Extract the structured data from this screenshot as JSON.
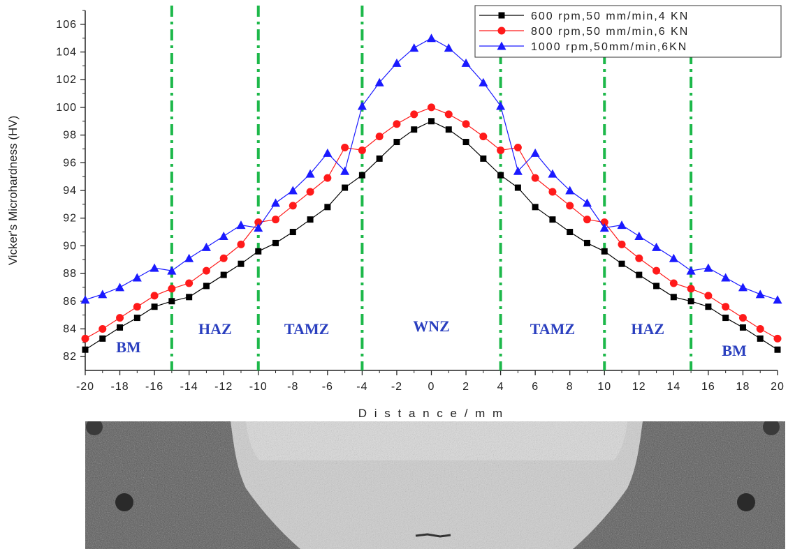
{
  "chart_data": {
    "type": "line",
    "xlabel": "D i s t a n c e / m m",
    "ylabel": "Vicker's Microhardness (HV)",
    "xlim": [
      -20,
      20
    ],
    "ylim": [
      81,
      107
    ],
    "x_ticks": [
      -20,
      -18,
      -16,
      -14,
      -12,
      -10,
      -8,
      -6,
      -4,
      -2,
      0,
      2,
      4,
      6,
      8,
      10,
      12,
      14,
      16,
      18,
      20
    ],
    "y_ticks": [
      82,
      84,
      86,
      88,
      90,
      92,
      94,
      96,
      98,
      100,
      102,
      104,
      106
    ],
    "x": [
      -20,
      -19,
      -18,
      -17,
      -16,
      -15,
      -14,
      -13,
      -12,
      -11,
      -10,
      -9,
      -8,
      -7,
      -6,
      -5,
      -4,
      -3,
      -2,
      -1,
      0,
      1,
      2,
      3,
      4,
      5,
      6,
      7,
      8,
      9,
      10,
      11,
      12,
      13,
      14,
      15,
      16,
      17,
      18,
      19,
      20
    ],
    "series": [
      {
        "name": "600 rpm,50 mm/min,4 KN",
        "color": "#000000",
        "marker": "square",
        "values": [
          82.5,
          83.3,
          84.1,
          84.8,
          85.6,
          86.0,
          86.3,
          87.1,
          87.9,
          88.7,
          89.6,
          90.2,
          91.0,
          91.9,
          92.8,
          94.2,
          95.1,
          96.3,
          97.5,
          98.4,
          99.0,
          98.4,
          97.5,
          96.3,
          95.1,
          94.2,
          92.8,
          91.9,
          91.0,
          90.2,
          89.6,
          88.7,
          87.9,
          87.1,
          86.3,
          86.0,
          85.6,
          84.8,
          84.1,
          83.3,
          82.5
        ]
      },
      {
        "name": "800 rpm,50 mm/min,6 KN",
        "color": "#ff1a1a",
        "marker": "circle",
        "values": [
          83.3,
          84.0,
          84.8,
          85.6,
          86.4,
          86.9,
          87.3,
          88.2,
          89.1,
          90.1,
          91.7,
          91.9,
          92.9,
          93.9,
          94.9,
          97.1,
          96.9,
          97.9,
          98.8,
          99.5,
          100.0,
          99.5,
          98.8,
          97.9,
          96.9,
          97.1,
          94.9,
          93.9,
          92.9,
          91.9,
          91.7,
          90.1,
          89.1,
          88.2,
          87.3,
          86.9,
          86.4,
          85.6,
          84.8,
          84.0,
          83.3
        ]
      },
      {
        "name": "1000 rpm,50mm/min,6KN",
        "color": "#1a1aff",
        "marker": "triangle",
        "values": [
          86.1,
          86.5,
          87.0,
          87.7,
          88.4,
          88.2,
          89.1,
          89.9,
          90.7,
          91.5,
          91.3,
          93.1,
          94.0,
          95.2,
          96.7,
          95.4,
          100.1,
          101.8,
          103.2,
          104.3,
          105.0,
          104.3,
          103.2,
          101.8,
          100.1,
          95.4,
          96.7,
          95.2,
          94.0,
          93.1,
          91.3,
          91.5,
          90.7,
          89.9,
          89.1,
          88.2,
          88.4,
          87.7,
          87.0,
          86.5,
          86.1
        ]
      }
    ],
    "zone_boundaries": [
      -15,
      -10,
      -4,
      4,
      10,
      15
    ],
    "zone_boundary_color": "#1db84a",
    "zones": [
      {
        "label": "BM",
        "x": -17.5
      },
      {
        "label": "HAZ",
        "x": -12.5
      },
      {
        "label": "TAMZ",
        "x": -7.2
      },
      {
        "label": "WNZ",
        "x": 0
      },
      {
        "label": "TAMZ",
        "x": 7.0
      },
      {
        "label": "HAZ",
        "x": 12.5
      },
      {
        "label": "BM",
        "x": 17.5
      }
    ],
    "legend_position": "top-right",
    "grid": false
  }
}
